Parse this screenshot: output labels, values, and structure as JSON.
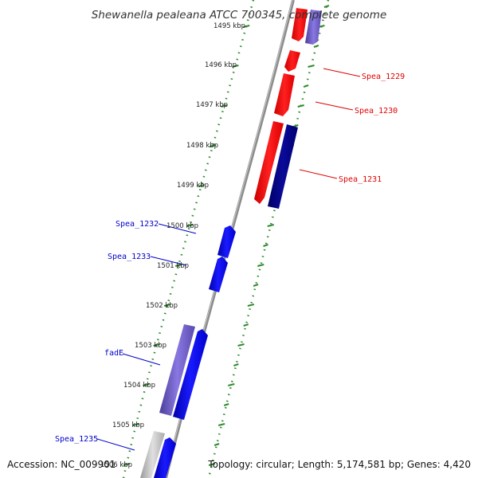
{
  "title": "Shewanella pealeana ATCC 700345, complete genome",
  "footer": {
    "accession": "Accession: NC_009901",
    "topology": "Topology: circular; Length: 5,174,581 bp; Genes: 4,420"
  },
  "colors": {
    "forward_gene": "#0000ee",
    "forward_gene_light": "#6a5acd",
    "reverse_gene": "#ee0000",
    "reverse_gene_dark": "#000080",
    "tick_green": "#2e8b2e",
    "backbone": "#888888",
    "gray_feature": "#bbbbbb"
  },
  "ticks": [
    {
      "label": "1495 kbp",
      "kbp": 1495
    },
    {
      "label": "1496 kbp",
      "kbp": 1496
    },
    {
      "label": "1497 kbp",
      "kbp": 1497
    },
    {
      "label": "1498 kbp",
      "kbp": 1498
    },
    {
      "label": "1499 kbp",
      "kbp": 1499
    },
    {
      "label": "1500 kbp",
      "kbp": 1500
    },
    {
      "label": "1501 kbp",
      "kbp": 1501
    },
    {
      "label": "1502 kbp",
      "kbp": 1502
    },
    {
      "label": "1503 kbp",
      "kbp": 1503
    },
    {
      "label": "1504 kbp",
      "kbp": 1504
    },
    {
      "label": "1505 kbp",
      "kbp": 1505
    },
    {
      "label": "1506 kbp",
      "kbp": 1506
    }
  ],
  "gene_labels": [
    {
      "name": "Spea_1229",
      "strand": "reverse"
    },
    {
      "name": "Spea_1230",
      "strand": "reverse"
    },
    {
      "name": "Spea_1231",
      "strand": "reverse"
    },
    {
      "name": "Spea_1232",
      "strand": "forward"
    },
    {
      "name": "Spea_1233",
      "strand": "forward"
    },
    {
      "name": "fadE",
      "strand": "forward"
    },
    {
      "name": "Spea_1235",
      "strand": "forward"
    }
  ]
}
